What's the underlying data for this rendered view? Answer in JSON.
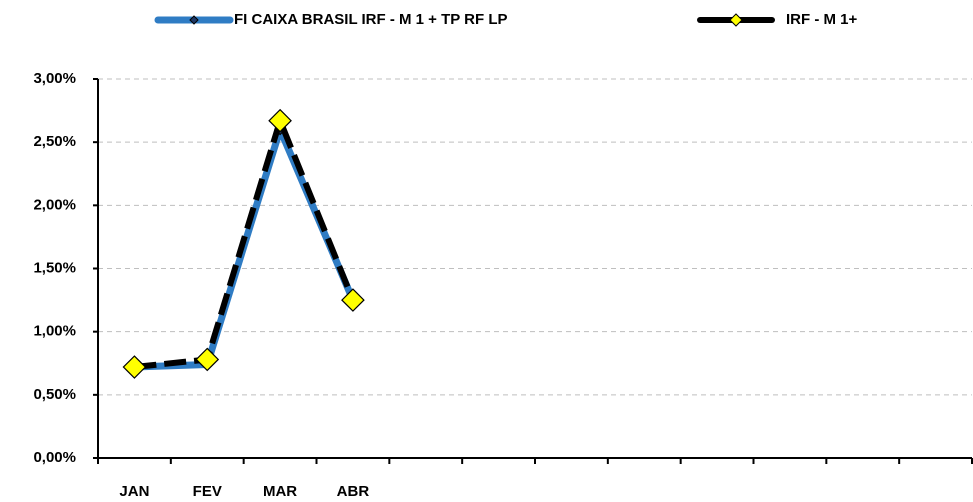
{
  "chart_data": {
    "type": "line",
    "categories": [
      "JAN",
      "FEV",
      "MAR",
      "ABR",
      null,
      null,
      null,
      null,
      null,
      null,
      null,
      null
    ],
    "series": [
      {
        "name": "FI CAIXA BRASIL IRF - M 1 + TP RF LP",
        "color": "#2f7cc4",
        "marker_color": "#1f3864",
        "dashed": false,
        "values": [
          0.72,
          0.74,
          2.6,
          1.25,
          null,
          null,
          null,
          null,
          null,
          null,
          null,
          null
        ]
      },
      {
        "name": "IRF - M 1+",
        "color": "#000000",
        "marker_color": "#ffff00",
        "dashed": true,
        "values": [
          0.72,
          0.78,
          2.67,
          1.25,
          null,
          null,
          null,
          null,
          null,
          null,
          null,
          null
        ]
      }
    ],
    "ylim": [
      0,
      3
    ],
    "yticks": [
      {
        "value": 0,
        "label": "0,00%"
      },
      {
        "value": 0.5,
        "label": "0,50%"
      },
      {
        "value": 1,
        "label": "1,00%"
      },
      {
        "value": 1.5,
        "label": "1,50%"
      },
      {
        "value": 2,
        "label": "2,00%"
      },
      {
        "value": 2.5,
        "label": "2,50%"
      },
      {
        "value": 3,
        "label": "3,00%"
      }
    ],
    "grid": true,
    "legend": "top"
  }
}
